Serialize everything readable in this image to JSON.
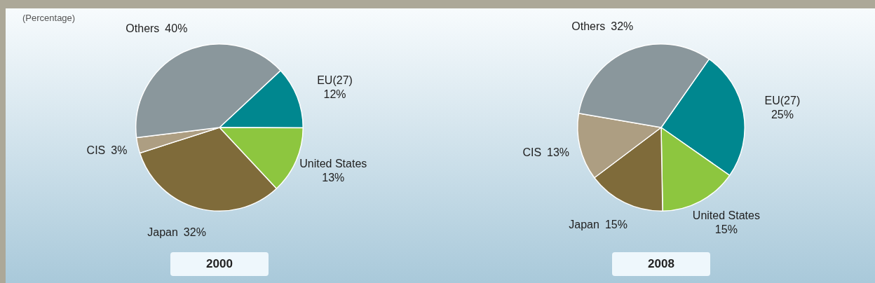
{
  "chart_data": [
    {
      "type": "pie",
      "subtitle": "(Percentage)",
      "title": "2000",
      "categories": [
        "EU(27)",
        "United States",
        "Japan",
        "CIS",
        "Others"
      ],
      "values": [
        12,
        13,
        32,
        3,
        40
      ],
      "value_labels": [
        "12%",
        "13%",
        "32%",
        "3%",
        "40%"
      ],
      "colors": [
        "#00878f",
        "#8dc63f",
        "#7f6b3a",
        "#ad9e82",
        "#8a979c"
      ]
    },
    {
      "type": "pie",
      "title": "2008",
      "categories": [
        "EU(27)",
        "United States",
        "Japan",
        "CIS",
        "Others"
      ],
      "values": [
        25,
        15,
        15,
        13,
        32
      ],
      "value_labels": [
        "25%",
        "15%",
        "15%",
        "13%",
        "32%"
      ],
      "colors": [
        "#00878f",
        "#8dc63f",
        "#7f6b3a",
        "#ad9e82",
        "#8a979c"
      ]
    }
  ]
}
